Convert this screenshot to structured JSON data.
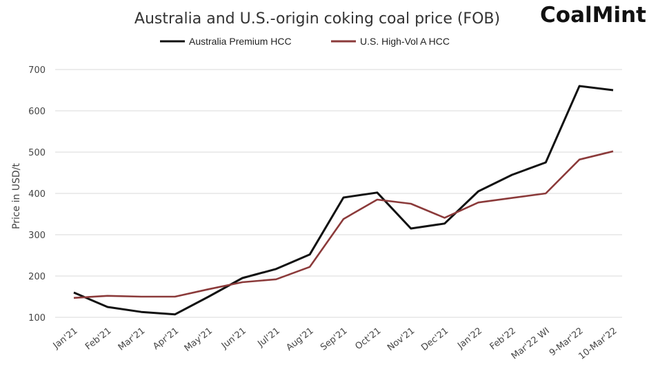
{
  "brand": "CoalMint",
  "chart_data": {
    "type": "line",
    "title": "Australia and U.S.-origin coking coal price (FOB)",
    "xlabel": "",
    "ylabel": "Price in USD/t",
    "ylim": [
      100,
      700
    ],
    "yticks": [
      100,
      200,
      300,
      400,
      500,
      600,
      700
    ],
    "grid": true,
    "legend_position": "top-center",
    "categories": [
      "Jan'21",
      "Feb'21",
      "Mar'21",
      "Apr'21",
      "May'21",
      "Jun'21",
      "Jul'21",
      "Aug'21",
      "Sep'21",
      "Oct'21",
      "Nov'21",
      "Dec'21",
      "Jan'22",
      "Feb'22",
      "Mar'22 WI",
      "9-Mar'22",
      "10-Mar'22"
    ],
    "series": [
      {
        "name": "Australia Premium HCC",
        "color": "#111111",
        "values": [
          160,
          125,
          113,
          107,
          150,
          195,
          217,
          252,
          390,
          402,
          315,
          327,
          405,
          445,
          475,
          660,
          650
        ]
      },
      {
        "name": "U.S. High-Vol A HCC",
        "color": "#8b3a3a",
        "values": [
          147,
          152,
          150,
          150,
          168,
          185,
          192,
          222,
          338,
          385,
          375,
          341,
          378,
          389,
          400,
          482,
          502
        ]
      }
    ]
  }
}
